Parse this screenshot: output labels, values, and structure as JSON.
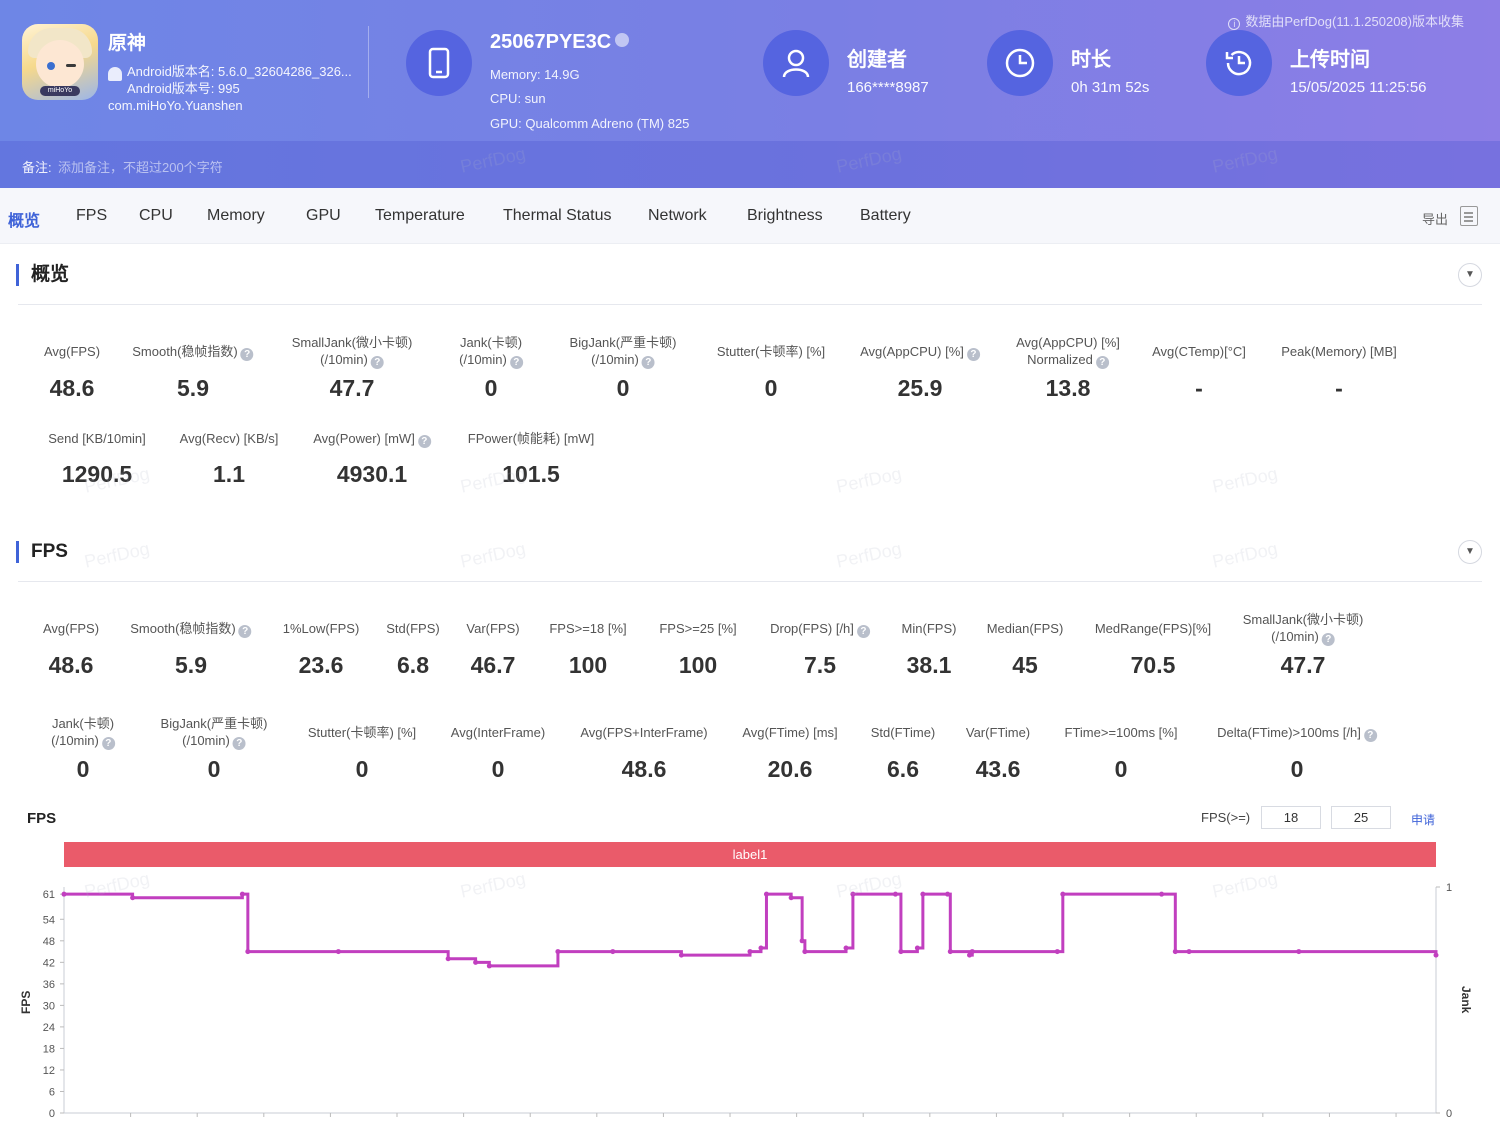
{
  "header": {
    "notice": "数据由PerfDog(11.1.250208)版本收集",
    "app": {
      "name": "原神",
      "version_name": "Android版本名: 5.6.0_32604286_326...",
      "version_code": "Android版本号: 995",
      "package": "com.miHoYo.Yuanshen",
      "icon_badge": "miHoYo"
    },
    "device": {
      "name": "25067PYE3C",
      "memory": "Memory: 14.9G",
      "cpu": "CPU: sun",
      "gpu": "GPU: Qualcomm Adreno (TM) 825"
    },
    "creator": {
      "title": "创建者",
      "value": "166****8987",
      "icon": "user-icon"
    },
    "duration": {
      "title": "时长",
      "value": "0h 31m 52s",
      "icon": "clock-icon"
    },
    "upload": {
      "title": "上传时间",
      "value": "15/05/2025 11:25:56",
      "icon": "history-icon"
    },
    "remark": {
      "label": "备注:",
      "placeholder": "添加备注，不超过200个字符"
    }
  },
  "tabs": {
    "items": [
      "概览",
      "FPS",
      "CPU",
      "Memory",
      "GPU",
      "Temperature",
      "Thermal Status",
      "Network",
      "Brightness",
      "Battery"
    ],
    "active": "概览",
    "export_label": "导出"
  },
  "overview": {
    "title": "概览",
    "row1": [
      {
        "label": "Avg(FPS)",
        "value": "48.6"
      },
      {
        "label": "Smooth(稳帧指数)",
        "value": "5.9",
        "help": true
      },
      {
        "label": "SmallJank(微小卡顿)\n(/10min)",
        "value": "47.7",
        "help": true
      },
      {
        "label": "Jank(卡顿)\n(/10min)",
        "value": "0",
        "help": true
      },
      {
        "label": "BigJank(严重卡顿)\n(/10min)",
        "value": "0",
        "help": true
      },
      {
        "label": "Stutter(卡顿率) [%]",
        "value": "0"
      },
      {
        "label": "Avg(AppCPU) [%]",
        "value": "25.9",
        "help": true
      },
      {
        "label": "Avg(AppCPU) [%]\nNormalized",
        "value": "13.8",
        "help": true
      },
      {
        "label": "Avg(CTemp)[°C]",
        "value": "-"
      },
      {
        "label": "Peak(Memory) [MB]",
        "value": "-"
      }
    ],
    "row2": [
      {
        "label": "Send [KB/10min]",
        "value": "1290.5"
      },
      {
        "label": "Avg(Recv) [KB/s]",
        "value": "1.1"
      },
      {
        "label": "Avg(Power) [mW]",
        "value": "4930.1",
        "help": true
      },
      {
        "label": "FPower(帧能耗) [mW]",
        "value": "101.5"
      }
    ]
  },
  "fps_section": {
    "title": "FPS",
    "row1": [
      {
        "label": "Avg(FPS)",
        "value": "48.6"
      },
      {
        "label": "Smooth(稳帧指数)",
        "value": "5.9",
        "help": true
      },
      {
        "label": "1%Low(FPS)",
        "value": "23.6"
      },
      {
        "label": "Std(FPS)",
        "value": "6.8"
      },
      {
        "label": "Var(FPS)",
        "value": "46.7"
      },
      {
        "label": "FPS>=18 [%]",
        "value": "100"
      },
      {
        "label": "FPS>=25 [%]",
        "value": "100"
      },
      {
        "label": "Drop(FPS) [/h]",
        "value": "7.5",
        "help": true
      },
      {
        "label": "Min(FPS)",
        "value": "38.1"
      },
      {
        "label": "Median(FPS)",
        "value": "45"
      },
      {
        "label": "MedRange(FPS)[%]",
        "value": "70.5"
      },
      {
        "label": "SmallJank(微小卡顿)\n(/10min)",
        "value": "47.7",
        "help": true
      }
    ],
    "row2": [
      {
        "label": "Jank(卡顿)\n(/10min)",
        "value": "0",
        "help": true
      },
      {
        "label": "BigJank(严重卡顿)\n(/10min)",
        "value": "0",
        "help": true
      },
      {
        "label": "Stutter(卡顿率) [%]",
        "value": "0"
      },
      {
        "label": "Avg(InterFrame)",
        "value": "0"
      },
      {
        "label": "Avg(FPS+InterFrame)",
        "value": "48.6"
      },
      {
        "label": "Avg(FTime) [ms]",
        "value": "20.6"
      },
      {
        "label": "Std(FTime)",
        "value": "6.6"
      },
      {
        "label": "Var(FTime)",
        "value": "43.6"
      },
      {
        "label": "FTime>=100ms [%]",
        "value": "0"
      },
      {
        "label": "Delta(FTime)>100ms [/h]",
        "value": "0",
        "help": true
      }
    ]
  },
  "fps_chart_controls": {
    "title": "FPS",
    "threshold_label": "FPS(>=)",
    "threshold_1": "18",
    "threshold_2": "25",
    "apply_label": "申请"
  },
  "watermark": "PerfDog",
  "chart_data": {
    "type": "line",
    "label_band": "label1",
    "ylabel": "FPS",
    "y2label": "Jank",
    "ylim": [
      0,
      63
    ],
    "y_ticks": [
      0,
      6,
      12,
      18,
      24,
      30,
      36,
      42,
      48,
      54,
      61
    ],
    "y2_ticks": [
      0,
      1
    ],
    "series": [
      {
        "color": "#c13fbf",
        "x": [
          0,
          0.05,
          0.13,
          0.134,
          0.2,
          0.28,
          0.3,
          0.31,
          0.36,
          0.4,
          0.45,
          0.5,
          0.508,
          0.512,
          0.53,
          0.538,
          0.54,
          0.57,
          0.575,
          0.606,
          0.61,
          0.622,
          0.626,
          0.644,
          0.646,
          0.66,
          0.662,
          0.724,
          0.728,
          0.8,
          0.81,
          0.82,
          0.9,
          1.0
        ],
        "values": [
          61,
          60,
          61,
          45,
          45,
          43,
          42,
          41,
          45,
          45,
          44,
          45,
          46,
          61,
          60,
          48,
          45,
          46,
          61,
          61,
          45,
          46,
          61,
          61,
          45,
          44,
          45,
          45,
          61,
          61,
          45,
          45,
          45,
          44
        ]
      }
    ]
  }
}
